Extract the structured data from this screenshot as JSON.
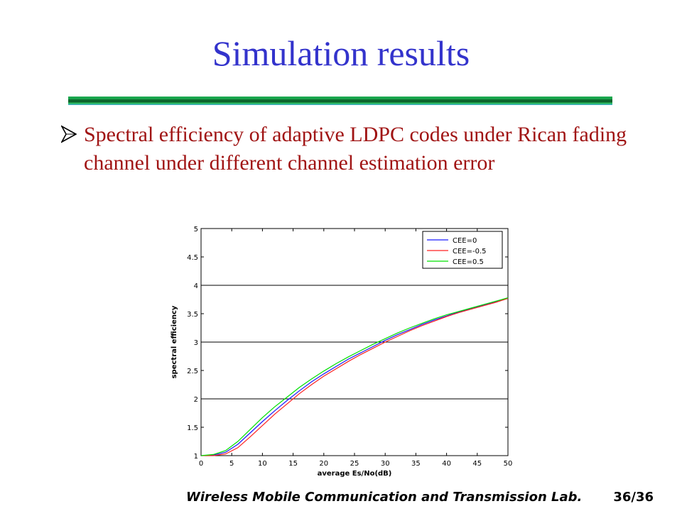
{
  "slide": {
    "title": "Simulation results",
    "bullet": "Spectral efficiency of adaptive LDPC codes under Rican fading channel under different channel estimation error",
    "footer": "Wireless Mobile Communication and Transmission Lab.",
    "page": "36/36"
  },
  "colors": {
    "title": "#3333cc",
    "bullet_text": "#a01414",
    "series_cee0": "#1a1aff",
    "series_cee_neg05": "#ff2020",
    "series_cee05": "#00e000"
  },
  "chart_data": {
    "type": "line",
    "title": "",
    "xlabel": "average Es/No(dB)",
    "ylabel": "spectral efficiency",
    "xlim": [
      0,
      50
    ],
    "ylim": [
      1,
      5
    ],
    "xticks": [
      0,
      5,
      10,
      15,
      20,
      25,
      30,
      35,
      40,
      45,
      50
    ],
    "yticks": [
      1,
      1.5,
      2,
      2.5,
      3,
      3.5,
      4,
      4.5,
      5
    ],
    "grid_y_major": [
      2,
      3,
      4
    ],
    "legend_position": "top-right",
    "x": [
      0,
      2,
      4,
      6,
      8,
      10,
      12,
      14,
      16,
      18,
      20,
      22,
      24,
      26,
      28,
      30,
      32,
      34,
      36,
      38,
      40,
      42,
      44,
      46,
      48,
      50
    ],
    "series": [
      {
        "name": "CEE=0",
        "color": "#1a1aff",
        "values": [
          1.0,
          1.01,
          1.06,
          1.2,
          1.4,
          1.6,
          1.79,
          1.97,
          2.14,
          2.3,
          2.44,
          2.57,
          2.7,
          2.81,
          2.92,
          3.03,
          3.13,
          3.22,
          3.31,
          3.39,
          3.46,
          3.53,
          3.59,
          3.65,
          3.71,
          3.78
        ]
      },
      {
        "name": "CEE=-0.5",
        "color": "#ff2020",
        "values": [
          1.0,
          1.0,
          1.03,
          1.14,
          1.33,
          1.53,
          1.73,
          1.91,
          2.09,
          2.25,
          2.4,
          2.53,
          2.66,
          2.78,
          2.89,
          3.0,
          3.1,
          3.2,
          3.29,
          3.37,
          3.45,
          3.52,
          3.58,
          3.64,
          3.7,
          3.77
        ]
      },
      {
        "name": "CEE=0.5",
        "color": "#00e000",
        "values": [
          1.0,
          1.02,
          1.09,
          1.25,
          1.46,
          1.67,
          1.86,
          2.03,
          2.2,
          2.35,
          2.49,
          2.62,
          2.74,
          2.85,
          2.96,
          3.06,
          3.16,
          3.25,
          3.33,
          3.41,
          3.48,
          3.54,
          3.6,
          3.66,
          3.72,
          3.78
        ]
      }
    ]
  }
}
